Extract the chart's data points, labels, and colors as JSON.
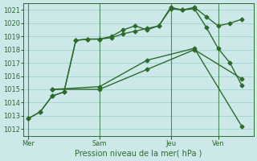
{
  "xlabel": "Pression niveau de la mer( hPa )",
  "background_color": "#cce8e8",
  "grid_color": "#99cccc",
  "line_color": "#2d6b2d",
  "ylim": [
    1011.5,
    1021.5
  ],
  "yticks": [
    1012,
    1013,
    1014,
    1015,
    1016,
    1017,
    1018,
    1019,
    1020,
    1021
  ],
  "xtick_labels": [
    "Mer",
    "Sam",
    "Jeu",
    "Ven"
  ],
  "xtick_positions": [
    0,
    30,
    60,
    80
  ],
  "xlim": [
    -2,
    95
  ],
  "vline_positions": [
    0,
    30,
    60,
    80
  ],
  "line1_x": [
    0,
    5,
    10,
    15,
    20,
    25,
    30,
    35,
    40,
    45,
    50,
    55,
    60,
    65,
    70,
    75,
    80,
    85,
    90
  ],
  "line1_y": [
    1012.8,
    1013.3,
    1014.5,
    1014.8,
    1018.7,
    1018.8,
    1018.8,
    1019.0,
    1019.5,
    1019.8,
    1019.5,
    1019.8,
    1021.2,
    1021.0,
    1021.2,
    1020.5,
    1019.8,
    1020.0,
    1020.3
  ],
  "line2_x": [
    0,
    5,
    10,
    15,
    20,
    25,
    30,
    35,
    40,
    45,
    50,
    55,
    60,
    65,
    70,
    75,
    80,
    85,
    90
  ],
  "line2_y": [
    1012.8,
    1013.3,
    1014.5,
    1014.8,
    1018.7,
    1018.8,
    1018.8,
    1018.9,
    1019.2,
    1019.4,
    1019.6,
    1019.8,
    1021.1,
    1021.0,
    1021.1,
    1019.7,
    1018.1,
    1017.0,
    1015.3
  ],
  "line3_x": [
    10,
    30,
    50,
    70,
    90
  ],
  "line3_y": [
    1015.0,
    1015.2,
    1017.2,
    1018.1,
    1012.2
  ],
  "line4_x": [
    10,
    30,
    50,
    70,
    90
  ],
  "line4_y": [
    1015.0,
    1015.0,
    1016.5,
    1018.0,
    1015.8
  ],
  "figsize": [
    3.2,
    2.0
  ],
  "dpi": 100
}
